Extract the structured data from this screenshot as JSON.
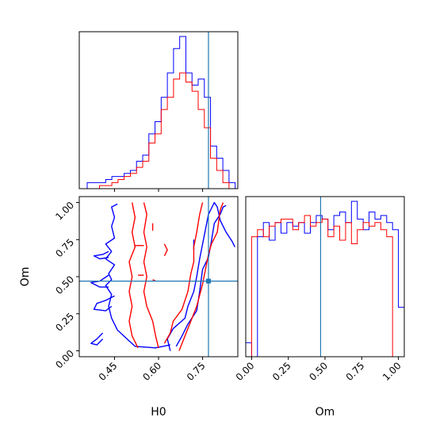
{
  "chart_data": {
    "type": "corner",
    "parameters": [
      "H0",
      "Om"
    ],
    "truth": {
      "H0": 0.77,
      "Om": 0.47
    },
    "truth_color": "#1f77b4",
    "series_colors": [
      "#0000ff",
      "#ff0000"
    ],
    "panels": [
      {
        "id": "H0-marginal",
        "type": "histogram",
        "xlim": [
          0.33,
          0.87
        ],
        "edges": [
          0.357,
          0.378,
          0.399,
          0.42,
          0.441,
          0.462,
          0.483,
          0.504,
          0.525,
          0.546,
          0.567,
          0.588,
          0.609,
          0.63,
          0.651,
          0.672,
          0.693,
          0.714,
          0.735,
          0.756,
          0.777,
          0.798,
          0.819,
          0.84,
          0.861
        ],
        "series": [
          {
            "color": "#0000ff",
            "values": [
              2,
              2,
              2,
              3,
              4,
              4,
              5,
              6,
              9,
              11,
              18,
              22,
              30,
              38,
              46,
              50,
              38,
              34,
              36,
              30,
              14,
              10,
              6,
              2
            ]
          },
          {
            "color": "#ff0000",
            "values": [
              0,
              0,
              1,
              1,
              2,
              3,
              4,
              5,
              7,
              9,
              15,
              18,
              26,
              30,
              36,
              38,
              35,
              32,
              26,
              20,
              10,
              6,
              2,
              0
            ]
          }
        ]
      },
      {
        "id": "Om-marginal",
        "type": "histogram",
        "xlim": [
          -0.04,
          1.04
        ],
        "edges": [
          -0.04,
          0.0,
          0.04,
          0.08,
          0.12,
          0.16,
          0.2,
          0.24,
          0.28,
          0.32,
          0.36,
          0.4,
          0.44,
          0.48,
          0.52,
          0.56,
          0.6,
          0.64,
          0.68,
          0.72,
          0.76,
          0.8,
          0.84,
          0.88,
          0.92,
          0.96,
          1.0,
          1.04
        ],
        "series": [
          {
            "color": "#0000ff",
            "values": [
              4,
              0,
              34,
              38,
              33,
              38,
              35,
              38,
              37,
              38,
              35,
              38,
              40,
              39,
              36,
              40,
              41,
              38,
              44,
              39,
              36,
              41,
              39,
              40,
              38,
              36,
              14
            ]
          },
          {
            "color": "#ff0000",
            "values": [
              0,
              34,
              36,
              34,
              37,
              38,
              39,
              39,
              36,
              38,
              40,
              37,
              38,
              39,
              34,
              37,
              33,
              38,
              32,
              36,
              38,
              37,
              38,
              36,
              34,
              0,
              0
            ]
          }
        ]
      },
      {
        "id": "H0-Om-joint",
        "type": "contour",
        "xlim": [
          0.33,
          0.87
        ],
        "ylim": [
          -0.04,
          1.04
        ],
        "contours": [
          {
            "color": "#0000ff",
            "points": [
              [
                0.46,
                0.99
              ],
              [
                0.44,
                0.97
              ],
              [
                0.45,
                0.9
              ],
              [
                0.44,
                0.84
              ],
              [
                0.45,
                0.76
              ],
              [
                0.42,
                0.72
              ],
              [
                0.44,
                0.67
              ],
              [
                0.42,
                0.62
              ],
              [
                0.45,
                0.58
              ],
              [
                0.43,
                0.52
              ],
              [
                0.44,
                0.48
              ],
              [
                0.42,
                0.44
              ],
              [
                0.44,
                0.38
              ],
              [
                0.43,
                0.3
              ],
              [
                0.44,
                0.22
              ],
              [
                0.46,
                0.14
              ],
              [
                0.52,
                0.03
              ],
              [
                0.59,
                0.02
              ],
              [
                0.64,
                0.04
              ]
            ]
          },
          {
            "color": "#0000ff",
            "points": [
              [
                0.64,
                0.0
              ],
              [
                0.63,
                0.08
              ],
              [
                0.65,
                0.15
              ],
              [
                0.69,
                0.22
              ],
              [
                0.7,
                0.3
              ],
              [
                0.72,
                0.4
              ],
              [
                0.73,
                0.5
              ],
              [
                0.74,
                0.62
              ],
              [
                0.75,
                0.72
              ],
              [
                0.76,
                0.82
              ],
              [
                0.77,
                0.92
              ],
              [
                0.79,
                1.0
              ],
              [
                0.8,
                0.97
              ],
              [
                0.81,
                0.88
              ],
              [
                0.83,
                0.8
              ],
              [
                0.85,
                0.74
              ],
              [
                0.86,
                0.7
              ]
            ]
          },
          {
            "color": "#0000ff",
            "points": [
              [
                0.66,
                0.03
              ],
              [
                0.68,
                0.1
              ],
              [
                0.7,
                0.18
              ],
              [
                0.73,
                0.27
              ],
              [
                0.74,
                0.4
              ],
              [
                0.75,
                0.55
              ],
              [
                0.77,
                0.63
              ],
              [
                0.78,
                0.74
              ],
              [
                0.79,
                0.86
              ],
              [
                0.81,
                0.92
              ],
              [
                0.82,
                0.97
              ],
              [
                0.83,
                0.98
              ]
            ]
          },
          {
            "color": "#0000ff",
            "points": [
              [
                0.43,
                0.67
              ],
              [
                0.41,
                0.65
              ],
              [
                0.38,
                0.64
              ],
              [
                0.4,
                0.62
              ],
              [
                0.43,
                0.63
              ]
            ]
          },
          {
            "color": "#0000ff",
            "points": [
              [
                0.43,
                0.51
              ],
              [
                0.4,
                0.47
              ],
              [
                0.37,
                0.46
              ],
              [
                0.4,
                0.43
              ],
              [
                0.43,
                0.43
              ]
            ]
          },
          {
            "color": "#0000ff",
            "points": [
              [
                0.45,
                0.37
              ],
              [
                0.42,
                0.34
              ],
              [
                0.39,
                0.32
              ],
              [
                0.38,
                0.28
              ],
              [
                0.42,
                0.27
              ],
              [
                0.44,
                0.3
              ]
            ]
          },
          {
            "color": "#0000ff",
            "points": [
              [
                0.41,
                0.12
              ],
              [
                0.39,
                0.08
              ],
              [
                0.37,
                0.05
              ],
              [
                0.39,
                0.04
              ],
              [
                0.41,
                0.08
              ]
            ]
          },
          {
            "color": "#0000ff",
            "points": [
              [
                0.72,
                0.75
              ],
              [
                0.72,
                0.71
              ],
              [
                0.72,
                0.68
              ]
            ]
          },
          {
            "color": "#ff0000",
            "points": [
              [
                0.51,
                1.0
              ],
              [
                0.52,
                0.9
              ],
              [
                0.51,
                0.8
              ],
              [
                0.52,
                0.7
              ],
              [
                0.5,
                0.6
              ],
              [
                0.51,
                0.5
              ],
              [
                0.5,
                0.4
              ],
              [
                0.51,
                0.3
              ],
              [
                0.5,
                0.2
              ],
              [
                0.51,
                0.1
              ],
              [
                0.53,
                0.02
              ]
            ]
          },
          {
            "color": "#ff0000",
            "points": [
              [
                0.55,
                1.0
              ],
              [
                0.56,
                0.92
              ],
              [
                0.55,
                0.8
              ],
              [
                0.56,
                0.7
              ],
              [
                0.55,
                0.6
              ],
              [
                0.56,
                0.5
              ],
              [
                0.55,
                0.4
              ],
              [
                0.56,
                0.3
              ],
              [
                0.58,
                0.2
              ],
              [
                0.59,
                0.1
              ],
              [
                0.6,
                0.02
              ]
            ]
          },
          {
            "color": "#ff0000",
            "points": [
              [
                0.62,
                0.05
              ],
              [
                0.64,
                0.12
              ],
              [
                0.65,
                0.2
              ],
              [
                0.68,
                0.28
              ],
              [
                0.7,
                0.4
              ],
              [
                0.71,
                0.52
              ],
              [
                0.72,
                0.6
              ],
              [
                0.72,
                0.7
              ],
              [
                0.73,
                0.8
              ],
              [
                0.74,
                0.92
              ],
              [
                0.75,
                1.0
              ]
            ]
          },
          {
            "color": "#ff0000",
            "points": [
              [
                0.67,
                0.0
              ],
              [
                0.69,
                0.1
              ],
              [
                0.71,
                0.2
              ],
              [
                0.73,
                0.3
              ],
              [
                0.75,
                0.45
              ],
              [
                0.76,
                0.55
              ],
              [
                0.77,
                0.65
              ],
              [
                0.78,
                0.72
              ],
              [
                0.8,
                0.8
              ],
              [
                0.81,
                0.95
              ],
              [
                0.82,
                1.0
              ]
            ]
          },
          {
            "color": "#ff0000",
            "points": [
              [
                0.58,
                0.86
              ],
              [
                0.58,
                0.81
              ]
            ]
          },
          {
            "color": "#ff0000",
            "points": [
              [
                0.52,
                0.71
              ],
              [
                0.55,
                0.71
              ]
            ]
          },
          {
            "color": "#ff0000",
            "points": [
              [
                0.62,
                0.72
              ],
              [
                0.63,
                0.68
              ],
              [
                0.62,
                0.64
              ]
            ]
          },
          {
            "color": "#ff0000",
            "points": [
              [
                0.53,
                0.51
              ],
              [
                0.55,
                0.51
              ]
            ]
          },
          {
            "color": "#ff0000",
            "points": [
              [
                0.58,
                0.48
              ],
              [
                0.59,
                0.47
              ]
            ]
          }
        ]
      }
    ],
    "axes": {
      "H0": {
        "label": "H0",
        "ticks": [
          0.45,
          0.6,
          0.75
        ],
        "tick_labels": [
          "0.45",
          "0.60",
          "0.75"
        ]
      },
      "Om": {
        "label": "Om",
        "ticks": [
          0.0,
          0.25,
          0.5,
          0.75,
          1.0
        ],
        "tick_labels": [
          "0.00",
          "0.25",
          "0.50",
          "0.75",
          "1.00"
        ]
      }
    }
  }
}
